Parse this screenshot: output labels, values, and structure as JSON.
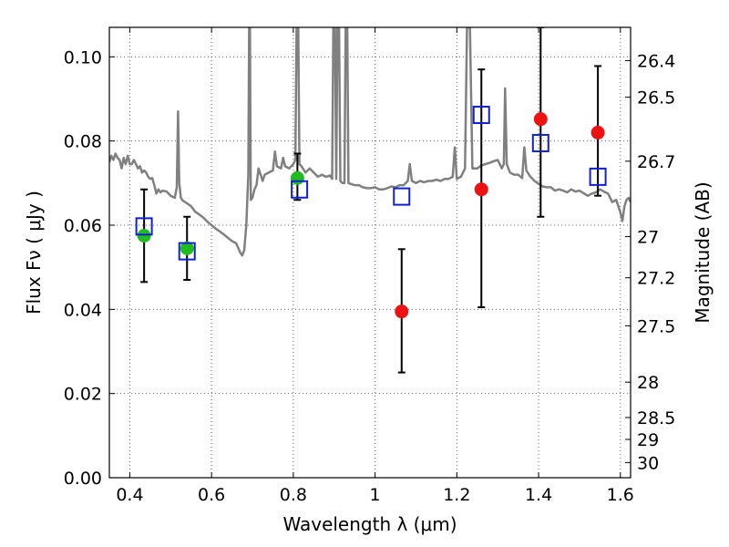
{
  "chart_data": {
    "type": "scatter",
    "xlabel": "Wavelength  λ (μm)",
    "ylabel": "Flux  Fν  ( μJy )",
    "ylabel_right": "Magnitude (AB)",
    "xlim": [
      0.35,
      1.625
    ],
    "ylim": [
      0.0,
      0.107
    ],
    "x_ticks": [
      0.4,
      0.6,
      0.8,
      1.0,
      1.2,
      1.4,
      1.6
    ],
    "x_tick_labels": [
      "0.4",
      "0.6",
      "0.8",
      "1",
      "1.2",
      "1.4",
      "1.6"
    ],
    "y_ticks": [
      0.0,
      0.02,
      0.04,
      0.06,
      0.08,
      0.1
    ],
    "y_tick_labels": [
      "0.00",
      "0.02",
      "0.04",
      "0.06",
      "0.08",
      "0.10"
    ],
    "right_axis_ticks": [
      {
        "flux": 0.0991,
        "label": "26.4"
      },
      {
        "flux": 0.0904,
        "label": "26.5"
      },
      {
        "flux": 0.0752,
        "label": "26.7"
      },
      {
        "flux": 0.0573,
        "label": "27"
      },
      {
        "flux": 0.0475,
        "label": "27.2"
      },
      {
        "flux": 0.0361,
        "label": "27.5"
      },
      {
        "flux": 0.0227,
        "label": "28"
      },
      {
        "flux": 0.0143,
        "label": "28.5"
      },
      {
        "flux": 0.0091,
        "label": "29"
      },
      {
        "flux": 0.0036,
        "label": "30"
      }
    ],
    "grid": true,
    "colors": {
      "template": "#808080",
      "detection": "#22bb22",
      "upper": "#ee1111",
      "model": "#1122cc",
      "errorbar": "#000000"
    },
    "series": [
      {
        "style": "template-line",
        "points": [
          [
            0.35,
            0.075
          ],
          [
            0.355,
            0.0765
          ],
          [
            0.36,
            0.0755
          ],
          [
            0.365,
            0.077
          ],
          [
            0.37,
            0.076
          ],
          [
            0.375,
            0.0755
          ],
          [
            0.38,
            0.0735
          ],
          [
            0.385,
            0.076
          ],
          [
            0.39,
            0.0745
          ],
          [
            0.395,
            0.0765
          ],
          [
            0.4,
            0.0745
          ],
          [
            0.405,
            0.0745
          ],
          [
            0.41,
            0.0755
          ],
          [
            0.415,
            0.0745
          ],
          [
            0.42,
            0.0735
          ],
          [
            0.425,
            0.074
          ],
          [
            0.43,
            0.0725
          ],
          [
            0.435,
            0.073
          ],
          [
            0.44,
            0.0725
          ],
          [
            0.445,
            0.0715
          ],
          [
            0.45,
            0.071
          ],
          [
            0.455,
            0.0712
          ],
          [
            0.46,
            0.0695
          ],
          [
            0.465,
            0.0675
          ],
          [
            0.47,
            0.0685
          ],
          [
            0.475,
            0.0678
          ],
          [
            0.48,
            0.0682
          ],
          [
            0.49,
            0.068
          ],
          [
            0.5,
            0.067
          ],
          [
            0.51,
            0.0665
          ],
          [
            0.515,
            0.069
          ],
          [
            0.518,
            0.087
          ],
          [
            0.521,
            0.07
          ],
          [
            0.525,
            0.0665
          ],
          [
            0.53,
            0.0658
          ],
          [
            0.54,
            0.0652
          ],
          [
            0.55,
            0.0645
          ],
          [
            0.56,
            0.0632
          ],
          [
            0.57,
            0.0625
          ],
          [
            0.58,
            0.0618
          ],
          [
            0.59,
            0.0608
          ],
          [
            0.6,
            0.06
          ],
          [
            0.61,
            0.0592
          ],
          [
            0.62,
            0.0585
          ],
          [
            0.63,
            0.0578
          ],
          [
            0.64,
            0.057
          ],
          [
            0.65,
            0.0562
          ],
          [
            0.66,
            0.0557
          ],
          [
            0.67,
            0.0535
          ],
          [
            0.675,
            0.0528
          ],
          [
            0.68,
            0.054
          ],
          [
            0.685,
            0.06
          ],
          [
            0.69,
            0.072
          ],
          [
            0.692,
            0.107
          ],
          [
            0.694,
            0.107
          ],
          [
            0.696,
            0.066
          ],
          [
            0.7,
            0.0665
          ],
          [
            0.705,
            0.0685
          ],
          [
            0.71,
            0.0695
          ],
          [
            0.715,
            0.0735
          ],
          [
            0.72,
            0.072
          ],
          [
            0.725,
            0.0705
          ],
          [
            0.73,
            0.072
          ],
          [
            0.74,
            0.0725
          ],
          [
            0.75,
            0.073
          ],
          [
            0.755,
            0.0775
          ],
          [
            0.76,
            0.074
          ],
          [
            0.77,
            0.0735
          ],
          [
            0.775,
            0.076
          ],
          [
            0.78,
            0.074
          ],
          [
            0.79,
            0.0735
          ],
          [
            0.8,
            0.0745
          ],
          [
            0.805,
            0.0755
          ],
          [
            0.808,
            0.107
          ],
          [
            0.812,
            0.107
          ],
          [
            0.815,
            0.0745
          ],
          [
            0.82,
            0.074
          ],
          [
            0.83,
            0.0725
          ],
          [
            0.84,
            0.0735
          ],
          [
            0.85,
            0.0725
          ],
          [
            0.86,
            0.0715
          ],
          [
            0.87,
            0.072
          ],
          [
            0.88,
            0.0715
          ],
          [
            0.89,
            0.0718
          ],
          [
            0.895,
            0.071
          ],
          [
            0.898,
            0.107
          ],
          [
            0.902,
            0.107
          ],
          [
            0.905,
            0.071
          ],
          [
            0.908,
            0.107
          ],
          [
            0.912,
            0.107
          ],
          [
            0.915,
            0.0705
          ],
          [
            0.92,
            0.07
          ],
          [
            0.925,
            0.07
          ],
          [
            0.928,
            0.107
          ],
          [
            0.932,
            0.107
          ],
          [
            0.935,
            0.07
          ],
          [
            0.94,
            0.0698
          ],
          [
            0.95,
            0.0695
          ],
          [
            0.96,
            0.0695
          ],
          [
            0.97,
            0.069
          ],
          [
            0.98,
            0.0688
          ],
          [
            0.99,
            0.0688
          ],
          [
            1.0,
            0.069
          ],
          [
            1.01,
            0.0685
          ],
          [
            1.02,
            0.0685
          ],
          [
            1.03,
            0.0688
          ],
          [
            1.04,
            0.0692
          ],
          [
            1.05,
            0.069
          ],
          [
            1.06,
            0.0695
          ],
          [
            1.07,
            0.0695
          ],
          [
            1.08,
            0.0705
          ],
          [
            1.085,
            0.0745
          ],
          [
            1.09,
            0.0705
          ],
          [
            1.1,
            0.07
          ],
          [
            1.11,
            0.0705
          ],
          [
            1.12,
            0.0702
          ],
          [
            1.13,
            0.0705
          ],
          [
            1.14,
            0.0705
          ],
          [
            1.15,
            0.0708
          ],
          [
            1.16,
            0.0705
          ],
          [
            1.17,
            0.071
          ],
          [
            1.18,
            0.071
          ],
          [
            1.19,
            0.0715
          ],
          [
            1.195,
            0.0785
          ],
          [
            1.2,
            0.071
          ],
          [
            1.21,
            0.0715
          ],
          [
            1.22,
            0.0735
          ],
          [
            1.225,
            0.107
          ],
          [
            1.232,
            0.107
          ],
          [
            1.238,
            0.0735
          ],
          [
            1.25,
            0.0735
          ],
          [
            1.26,
            0.0742
          ],
          [
            1.27,
            0.0745
          ],
          [
            1.28,
            0.0748
          ],
          [
            1.29,
            0.0752
          ],
          [
            1.3,
            0.0755
          ],
          [
            1.31,
            0.0735
          ],
          [
            1.315,
            0.0745
          ],
          [
            1.318,
            0.0925
          ],
          [
            1.322,
            0.0745
          ],
          [
            1.33,
            0.0725
          ],
          [
            1.34,
            0.072
          ],
          [
            1.35,
            0.072
          ],
          [
            1.36,
            0.0712
          ],
          [
            1.365,
            0.0785
          ],
          [
            1.37,
            0.073
          ],
          [
            1.38,
            0.0715
          ],
          [
            1.39,
            0.0705
          ],
          [
            1.4,
            0.0698
          ],
          [
            1.41,
            0.0692
          ],
          [
            1.42,
            0.069
          ],
          [
            1.43,
            0.069
          ],
          [
            1.44,
            0.0682
          ],
          [
            1.45,
            0.0685
          ],
          [
            1.46,
            0.0682
          ],
          [
            1.47,
            0.0678
          ],
          [
            1.48,
            0.0685
          ],
          [
            1.49,
            0.068
          ],
          [
            1.5,
            0.0682
          ],
          [
            1.51,
            0.0676
          ],
          [
            1.52,
            0.067
          ],
          [
            1.53,
            0.0675
          ],
          [
            1.54,
            0.0678
          ],
          [
            1.55,
            0.0685
          ],
          [
            1.56,
            0.068
          ],
          [
            1.57,
            0.0675
          ],
          [
            1.58,
            0.0655
          ],
          [
            1.59,
            0.066
          ],
          [
            1.6,
            0.063
          ],
          [
            1.605,
            0.061
          ],
          [
            1.61,
            0.0645
          ],
          [
            1.615,
            0.066
          ],
          [
            1.62,
            0.0665
          ],
          [
            1.625,
            0.0655
          ]
        ]
      },
      {
        "style": "filled-circle-green",
        "points": [
          {
            "x": 0.435,
            "y": 0.0575,
            "yerr_low": 0.0465,
            "yerr_high": 0.0685
          },
          {
            "x": 0.54,
            "y": 0.0545,
            "yerr_low": 0.047,
            "yerr_high": 0.062
          },
          {
            "x": 0.81,
            "y": 0.0712,
            "yerr_low": 0.066,
            "yerr_high": 0.077
          }
        ]
      },
      {
        "style": "filled-circle-red",
        "points": [
          {
            "x": 1.065,
            "y": 0.0395,
            "yerr_low": 0.025,
            "yerr_high": 0.0543
          },
          {
            "x": 1.26,
            "y": 0.0685,
            "yerr_low": 0.0405,
            "yerr_high": 0.097
          },
          {
            "x": 1.405,
            "y": 0.0852,
            "yerr_low": 0.062,
            "yerr_high": 0.107
          },
          {
            "x": 1.545,
            "y": 0.082,
            "yerr_low": 0.067,
            "yerr_high": 0.0978
          }
        ]
      },
      {
        "style": "open-square-blue",
        "points": [
          {
            "x": 0.435,
            "y": 0.0597
          },
          {
            "x": 0.54,
            "y": 0.0538
          },
          {
            "x": 0.815,
            "y": 0.0685
          },
          {
            "x": 1.065,
            "y": 0.0668
          },
          {
            "x": 1.26,
            "y": 0.0862
          },
          {
            "x": 1.405,
            "y": 0.0795
          },
          {
            "x": 1.545,
            "y": 0.0715
          }
        ]
      }
    ]
  }
}
